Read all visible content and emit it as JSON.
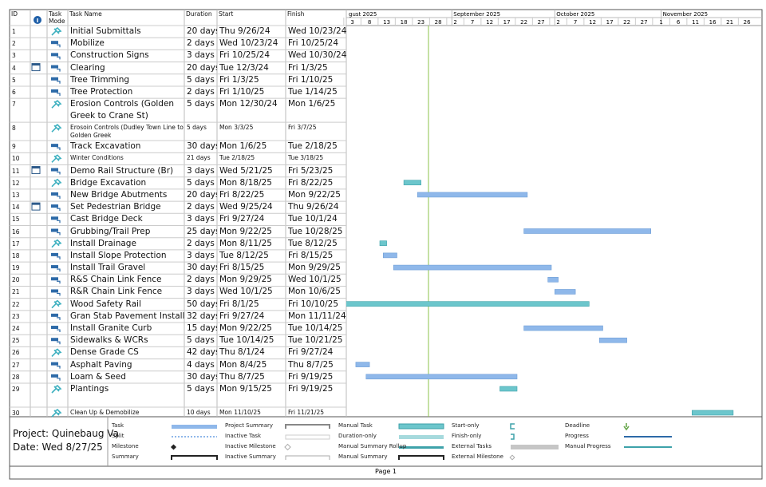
{
  "header": {
    "id": "ID",
    "mode": "Task Mode",
    "name": "Task Name",
    "duration": "Duration",
    "start": "Start",
    "finish": "Finish"
  },
  "timeline": {
    "months": [
      "gust 2025",
      "September 2025",
      "October 2025",
      "November 2025"
    ],
    "days": [
      "3",
      "8",
      "13",
      "18",
      "23",
      "28",
      "2",
      "7",
      "12",
      "17",
      "22",
      "27",
      "2",
      "7",
      "12",
      "17",
      "22",
      "27",
      "1",
      "6",
      "11",
      "16",
      "21",
      "26"
    ]
  },
  "tasks": [
    {
      "id": 1,
      "name": "Initial Submittals",
      "duration": "20 days",
      "start": "Thu 9/26/24",
      "finish": "Wed 10/23/24",
      "manual": true,
      "indicator": false
    },
    {
      "id": 2,
      "name": "Mobilize",
      "duration": "2 days",
      "start": "Wed 10/23/24",
      "finish": "Fri 10/25/24",
      "manual": false,
      "indicator": false
    },
    {
      "id": 3,
      "name": "Construction Signs",
      "duration": "3 days",
      "start": "Fri 10/25/24",
      "finish": "Wed 10/30/24",
      "manual": false,
      "indicator": false
    },
    {
      "id": 4,
      "name": "Clearing",
      "duration": "20 days",
      "start": "Tue 12/3/24",
      "finish": "Fri 1/3/25",
      "manual": false,
      "indicator": true
    },
    {
      "id": 5,
      "name": "Tree Trimming",
      "duration": "5 days",
      "start": "Fri 1/3/25",
      "finish": "Fri 1/10/25",
      "manual": false,
      "indicator": false
    },
    {
      "id": 6,
      "name": "Tree Protection",
      "duration": "2 days",
      "start": "Fri 1/10/25",
      "finish": "Tue 1/14/25",
      "manual": false,
      "indicator": false
    },
    {
      "id": 7,
      "name": "Erosion Controls (Golden Greek to Crane St)",
      "duration": "5 days",
      "start": "Mon 12/30/24",
      "finish": "Mon 1/6/25",
      "manual": true,
      "indicator": false
    },
    {
      "id": 8,
      "name": "Erosoin Controls (Dudley Town Line to Golden Greek",
      "duration": "5 days",
      "start": "Mon 3/3/25",
      "finish": "Fri 3/7/25",
      "manual": true,
      "indicator": false
    },
    {
      "id": 9,
      "name": "Track Excavation",
      "duration": "30 days",
      "start": "Mon 1/6/25",
      "finish": "Tue 2/18/25",
      "manual": false,
      "indicator": false
    },
    {
      "id": 10,
      "name": "Winter Conditions",
      "duration": "21 days",
      "start": "Tue 2/18/25",
      "finish": "Tue 3/18/25",
      "manual": true,
      "indicator": false
    },
    {
      "id": 11,
      "name": "Demo Rail Structure (Br)",
      "duration": "3 days",
      "start": "Wed 5/21/25",
      "finish": "Fri 5/23/25",
      "manual": false,
      "indicator": true
    },
    {
      "id": 12,
      "name": "Bridge Excavation",
      "duration": "5 days",
      "start": "Mon 8/18/25",
      "finish": "Fri 8/22/25",
      "manual": true,
      "indicator": false
    },
    {
      "id": 13,
      "name": "New Bridge Abutments",
      "duration": "20 days",
      "start": "Fri 8/22/25",
      "finish": "Mon 9/22/25",
      "manual": false,
      "indicator": false
    },
    {
      "id": 14,
      "name": "Set Pedestrian Bridge",
      "duration": "2 days",
      "start": "Wed 9/25/24",
      "finish": "Thu 9/26/24",
      "manual": false,
      "indicator": true
    },
    {
      "id": 15,
      "name": "Cast Bridge Deck",
      "duration": "3 days",
      "start": "Fri 9/27/24",
      "finish": "Tue 10/1/24",
      "manual": false,
      "indicator": false
    },
    {
      "id": 16,
      "name": "Grubbing/Trail Prep",
      "duration": "25 days",
      "start": "Mon 9/22/25",
      "finish": "Tue 10/28/25",
      "manual": false,
      "indicator": false
    },
    {
      "id": 17,
      "name": "Install Drainage",
      "duration": "2 days",
      "start": "Mon 8/11/25",
      "finish": "Tue 8/12/25",
      "manual": true,
      "indicator": false
    },
    {
      "id": 18,
      "name": "Install Slope Protection",
      "duration": "3 days",
      "start": "Tue 8/12/25",
      "finish": "Fri 8/15/25",
      "manual": false,
      "indicator": false
    },
    {
      "id": 19,
      "name": "Install Trail Gravel",
      "duration": "30 days",
      "start": "Fri 8/15/25",
      "finish": "Mon 9/29/25",
      "manual": false,
      "indicator": false
    },
    {
      "id": 20,
      "name": "R&S Chain Link Fence",
      "duration": "2 days",
      "start": "Mon 9/29/25",
      "finish": "Wed 10/1/25",
      "manual": false,
      "indicator": false
    },
    {
      "id": 21,
      "name": "R&R Chain Link Fence",
      "duration": "3 days",
      "start": "Wed 10/1/25",
      "finish": "Mon 10/6/25",
      "manual": false,
      "indicator": false
    },
    {
      "id": 22,
      "name": "Wood Safety Rail",
      "duration": "50 days",
      "start": "Fri 8/1/25",
      "finish": "Fri 10/10/25",
      "manual": true,
      "indicator": false
    },
    {
      "id": 23,
      "name": "Gran Stab Pavement Install",
      "duration": "32 days",
      "start": "Fri 9/27/24",
      "finish": "Mon 11/11/24",
      "manual": false,
      "indicator": false
    },
    {
      "id": 24,
      "name": "Install Granite Curb",
      "duration": "15 days",
      "start": "Mon 9/22/25",
      "finish": "Tue 10/14/25",
      "manual": false,
      "indicator": false
    },
    {
      "id": 25,
      "name": "Sidewalks & WCRs",
      "duration": "5 days",
      "start": "Tue 10/14/25",
      "finish": "Tue 10/21/25",
      "manual": false,
      "indicator": false
    },
    {
      "id": 26,
      "name": "Dense Grade CS",
      "duration": "42 days",
      "start": "Thu 8/1/24",
      "finish": "Fri 9/27/24",
      "manual": true,
      "indicator": false
    },
    {
      "id": 27,
      "name": "Asphalt Paving",
      "duration": "4 days",
      "start": "Mon 8/4/25",
      "finish": "Thu 8/7/25",
      "manual": false,
      "indicator": false
    },
    {
      "id": 28,
      "name": "Loam & Seed",
      "duration": "30 days",
      "start": "Thu 8/7/25",
      "finish": "Fri 9/19/25",
      "manual": false,
      "indicator": false
    },
    {
      "id": 29,
      "name": "Plantings",
      "duration": "5 days",
      "start": "Mon 9/15/25",
      "finish": "Fri 9/19/25",
      "manual": true,
      "indicator": false
    },
    {
      "id": 30,
      "name": "Clean Up & Demobilize",
      "duration": "10 days",
      "start": "Mon 11/10/25",
      "finish": "Fri 11/21/25",
      "manual": true,
      "indicator": false
    }
  ],
  "legend": [
    "Task",
    "Split",
    "Milestone",
    "Summary",
    "Project Summary",
    "Inactive Task",
    "Inactive Milestone",
    "Inactive Summary",
    "Manual Task",
    "Duration-only",
    "Manual Summary Rollup",
    "Manual Summary",
    "Start-only",
    "Finish-only",
    "External Tasks",
    "External Milestone",
    "Deadline",
    "Progress",
    "Manual Progress"
  ],
  "project": "Project: Quinebaug Va",
  "date": "Date: Wed 8/27/25",
  "footer": "Page 1"
}
